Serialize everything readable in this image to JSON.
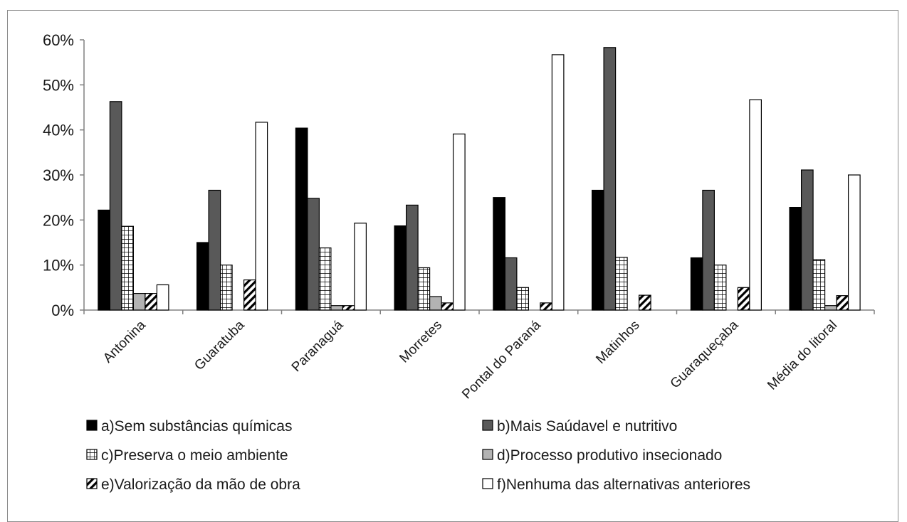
{
  "chart_data": {
    "type": "bar",
    "categories": [
      "Antonina",
      "Guaratuba",
      "Paranaguá",
      "Morretes",
      "Pontal do Paraná",
      "Matinhos",
      "Guaraqueçaba",
      "Média do litoral"
    ],
    "ylim": [
      0,
      60
    ],
    "yticks": [
      "0%",
      "10%",
      "20%",
      "30%",
      "40%",
      "50%",
      "60%"
    ],
    "ylabel_unit": "%",
    "grid": false,
    "legend_position": "bottom",
    "series": [
      {
        "name": "a)Sem substâncias químicas",
        "pattern": "solid-black",
        "color": "#000000",
        "values": [
          22.2,
          15.0,
          40.4,
          18.7,
          25.0,
          26.6,
          11.6,
          22.8
        ]
      },
      {
        "name": "b)Mais Saúdavel e nutritivo",
        "pattern": "solid-darkgray",
        "color": "#595959",
        "values": [
          46.3,
          26.6,
          24.8,
          23.3,
          11.6,
          58.3,
          26.6,
          31.1
        ]
      },
      {
        "name": "c)Preserva o meio ambiente",
        "pattern": "grid",
        "color": "#ffffff",
        "values": [
          18.6,
          10.0,
          13.8,
          9.4,
          5.0,
          11.7,
          10.0,
          11.2
        ]
      },
      {
        "name": "d)Processo produtivo insecionado",
        "pattern": "solid-lightgray",
        "color": "#b3b3b3",
        "values": [
          3.7,
          0,
          1.0,
          3.0,
          0,
          0,
          0,
          1.0
        ]
      },
      {
        "name": "e)Valorização da mão de obra",
        "pattern": "diagonal",
        "color": "#ffffff",
        "values": [
          3.7,
          6.7,
          1.0,
          1.6,
          1.6,
          3.3,
          5.0,
          3.2
        ]
      },
      {
        "name": "f)Nenhuma das alternativas anteriores",
        "pattern": "solid-white",
        "color": "#ffffff",
        "values": [
          5.6,
          41.7,
          19.3,
          39.1,
          56.7,
          0,
          46.7,
          30.0
        ]
      }
    ]
  }
}
